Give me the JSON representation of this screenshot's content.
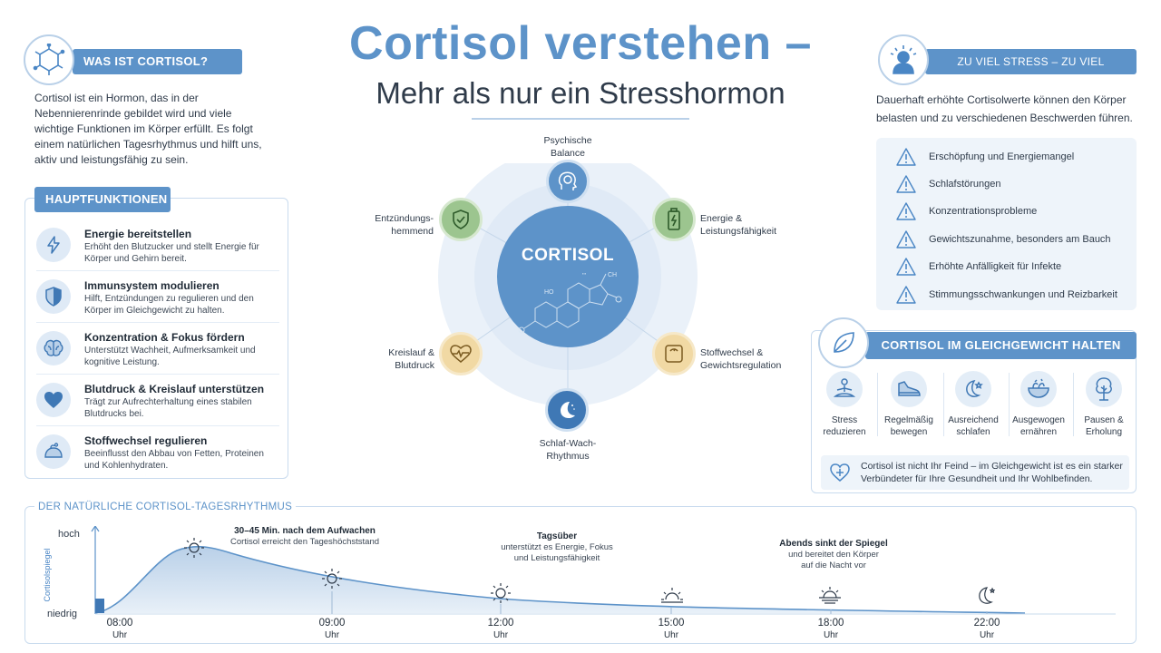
{
  "title": {
    "line1": "Cortisol verstehen –",
    "line2": "Mehr als nur ein Stresshormon"
  },
  "intro": {
    "header": "WAS IST CORTISOL?",
    "icon": "molecule-icon",
    "text": "Cortisol ist ein Hormon, das in der Nebennierenrinde gebildet wird und viele wichtige Funktionen im Körper erfüllt. Es folgt einem natürlichen Tagesrhythmus und hilft uns, aktiv und leistungsfähig zu sein."
  },
  "functions": {
    "header": "HAUPTFUNKTIONEN",
    "items": [
      {
        "title": "Energie bereitstellen",
        "desc": "Erhöht den Blutzucker und stellt Energie für Körper und Gehirn bereit.",
        "icon": "lightning-icon"
      },
      {
        "title": "Immunsystem modulieren",
        "desc": "Hilft, Entzündungen zu regulieren und den Körper im Gleichgewicht zu halten.",
        "icon": "shield-icon"
      },
      {
        "title": "Konzentration & Fokus fördern",
        "desc": "Unterstützt Wachheit, Aufmerksamkeit und kognitive Leistung.",
        "icon": "brain-icon"
      },
      {
        "title": "Blutdruck & Kreislauf unterstützen",
        "desc": "Trägt zur Aufrechterhaltung eines stabilen Blutdrucks bei.",
        "icon": "heart-icon"
      },
      {
        "title": "Stoffwechsel regulieren",
        "desc": "Beeinflusst den Abbau von Fetten, Proteinen und Kohlenhydraten.",
        "icon": "metabolism-icon"
      }
    ]
  },
  "diagram": {
    "center": "CORTISOL",
    "nodes": [
      {
        "label": "Psychische\nBalance",
        "icon": "head-brain-icon",
        "color": "#5d93c9"
      },
      {
        "label": "Energie &\nLeistungsfähigkeit",
        "icon": "battery-icon",
        "color": "#9cc58f"
      },
      {
        "label": "Stoffwechsel &\nGewichtsregulation",
        "icon": "scale-icon",
        "color": "#f1d9a4"
      },
      {
        "label": "Schlaf-Wach-\nRhythmus",
        "icon": "moon-icon",
        "color": "#3f78b5"
      },
      {
        "label": "Kreislauf &\nBlutdruck",
        "icon": "heart-pulse-icon",
        "color": "#f1d9a4"
      },
      {
        "label": "Entzündungs-\nhemmend",
        "icon": "shield-check-icon",
        "color": "#9cc58f"
      }
    ]
  },
  "stress": {
    "header": "ZU VIEL STRESS – ZU VIEL CORTISOL",
    "icon": "stressed-person-icon",
    "text": "Dauerhaft erhöhte Cortisolwerte können den Körper belasten und zu verschiedenen Beschwerden führen.",
    "items": [
      "Erschöpfung und Energiemangel",
      "Schlafstörungen",
      "Konzentrationsprobleme",
      "Gewichtszunahme, besonders am Bauch",
      "Erhöhte Anfälligkeit für Infekte",
      "Stimmungsschwankungen und Reizbarkeit"
    ]
  },
  "balance": {
    "header": "CORTISOL IM GLEICHGEWICHT HALTEN",
    "icon": "leaf-icon",
    "items": [
      {
        "label": "Stress\nreduzieren",
        "icon": "meditation-icon"
      },
      {
        "label": "Regelmäßig\nbewegen",
        "icon": "shoe-icon"
      },
      {
        "label": "Ausreichend\nschlafen",
        "icon": "moon-stars-icon"
      },
      {
        "label": "Ausgewogen\nernähren",
        "icon": "salad-icon"
      },
      {
        "label": "Pausen &\nErholung",
        "icon": "tree-icon"
      }
    ],
    "note": "Cortisol ist nicht Ihr Feind – im Gleichgewicht ist es ein starker Verbündeter für Ihre Gesundheit und Ihr Wohlbefinden."
  },
  "timeline": {
    "title": "DER NATÜRLICHE CORTISOL-TAGESRHYTHMUS",
    "y_axis_label": "Cortisolspiegel",
    "y_levels": [
      "hoch",
      "niedrig"
    ],
    "ticks": [
      {
        "time": "08:00",
        "unit": "Uhr"
      },
      {
        "time": "09:00",
        "unit": "Uhr"
      },
      {
        "time": "12:00",
        "unit": "Uhr"
      },
      {
        "time": "15:00",
        "unit": "Uhr"
      },
      {
        "time": "18:00",
        "unit": "Uhr"
      },
      {
        "time": "22:00",
        "unit": "Uhr"
      }
    ],
    "annotations": [
      {
        "title": "30–45 Min. nach dem Aufwachen",
        "text": "Cortisol erreicht den Tageshöchststand"
      },
      {
        "title": "Tagsüber",
        "text": "unterstützt es Energie, Fokus\nund Leistungsfähigkeit"
      },
      {
        "title": "Abends sinkt der Spiegel",
        "text": "und bereitet den Körper\nauf die Nacht vor"
      }
    ]
  }
}
